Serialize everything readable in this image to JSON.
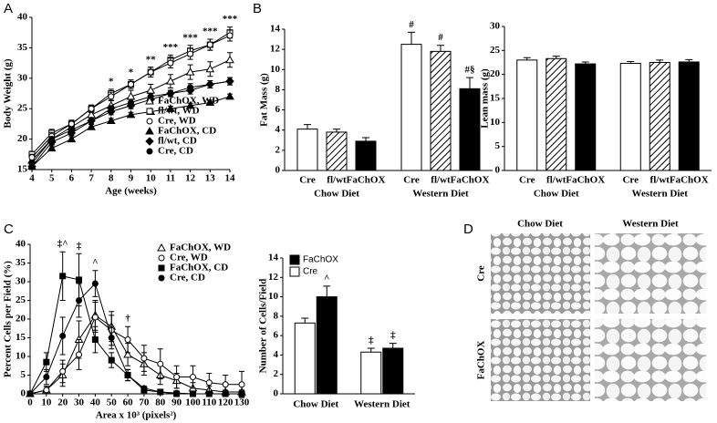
{
  "chart_data": [
    {
      "type": "line",
      "ylabel": "Body Weight (g)",
      "xlabel": "Age (weeks)",
      "xlim": [
        4,
        14
      ],
      "xticks": [
        4,
        5,
        6,
        7,
        8,
        9,
        10,
        11,
        12,
        13,
        14
      ],
      "ylim": [
        15,
        40
      ],
      "yticks": [
        15,
        20,
        25,
        30,
        35,
        40
      ],
      "legend": "lower right",
      "x": [
        4,
        5,
        6,
        7,
        8,
        9,
        10,
        11,
        12,
        13,
        14
      ],
      "series": [
        {
          "name": "FaChOX, WD",
          "color": "#000000",
          "marker": "triangle",
          "filled": false,
          "values": [
            16.5,
            20,
            22,
            24,
            25.5,
            27,
            28,
            29.5,
            31,
            31.5,
            33
          ],
          "errors": [
            0.6,
            0.7,
            0.7,
            0.8,
            0.9,
            1,
            1,
            1.1,
            1.2,
            1.2,
            1.2
          ]
        },
        {
          "name": "fl/wt, WD",
          "color": "#000000",
          "marker": "square",
          "filled": false,
          "values": [
            17.5,
            21,
            22.5,
            25,
            27.5,
            29,
            31,
            33,
            34.5,
            35.5,
            37.5
          ],
          "errors": [
            0.5,
            0.6,
            0.6,
            0.6,
            0.7,
            0.7,
            0.8,
            0.8,
            0.9,
            0.9,
            0.9
          ]
        },
        {
          "name": "Cre, WD",
          "color": "#000000",
          "marker": "circle",
          "filled": false,
          "values": [
            17,
            20.5,
            22.5,
            25,
            27,
            29,
            31,
            32.5,
            34,
            35.5,
            37
          ],
          "errors": [
            0.5,
            0.6,
            0.6,
            0.6,
            0.7,
            0.7,
            0.8,
            0.8,
            0.9,
            0.9,
            0.9
          ]
        },
        {
          "name": "FaChOX, CD",
          "color": "#000000",
          "marker": "triangle",
          "filled": true,
          "values": [
            15.5,
            18.5,
            20,
            22,
            23,
            24,
            24.5,
            25,
            25.5,
            26,
            27
          ],
          "errors": [
            0.4,
            0.4,
            0.4,
            0.4,
            0.4,
            0.4,
            0.4,
            0.4,
            0.4,
            0.4,
            0.4
          ]
        },
        {
          "name": "fl/wt, CD",
          "color": "#000000",
          "marker": "diamond",
          "filled": true,
          "values": [
            15.5,
            19.5,
            21,
            23,
            24.5,
            25.5,
            26.5,
            27.5,
            28,
            29,
            29.5
          ],
          "errors": [
            0.4,
            0.4,
            0.4,
            0.5,
            0.5,
            0.5,
            0.5,
            0.5,
            0.6,
            0.6,
            0.6
          ]
        },
        {
          "name": "Cre, CD",
          "color": "#000000",
          "marker": "circle",
          "filled": true,
          "values": [
            16,
            20,
            21.5,
            23,
            25,
            26,
            27,
            27.5,
            28.5,
            29,
            29.5
          ],
          "errors": [
            0.4,
            0.4,
            0.4,
            0.5,
            0.5,
            0.5,
            0.5,
            0.5,
            0.6,
            0.6,
            0.6
          ]
        }
      ],
      "annotations": [
        {
          "x": 8,
          "text": "*"
        },
        {
          "x": 9,
          "text": "*"
        },
        {
          "x": 10,
          "text": "**"
        },
        {
          "x": 11,
          "text": "***"
        },
        {
          "x": 12,
          "text": "***"
        },
        {
          "x": 13,
          "text": "***"
        },
        {
          "x": 14,
          "text": "***"
        }
      ]
    },
    {
      "type": "bar",
      "ylabel": "Fat Mass (g)",
      "ylim": [
        0,
        14
      ],
      "yticks": [
        0,
        2,
        4,
        6,
        8,
        10,
        12,
        14
      ],
      "categories": [
        "Chow Diet",
        "Western Diet"
      ],
      "series_labels_below": true,
      "series": [
        {
          "name": "Cre",
          "color": "#ffffff",
          "values": [
            4.1,
            12.5
          ],
          "errors": [
            0.45,
            1.2
          ],
          "sig": [
            null,
            "#"
          ]
        },
        {
          "name": "fl/wt",
          "color": "#ffffff",
          "pattern": "hatch",
          "values": [
            3.8,
            11.8
          ],
          "errors": [
            0.3,
            0.6
          ],
          "sig": [
            null,
            "#"
          ]
        },
        {
          "name": "FaChOX",
          "color": "#000000",
          "values": [
            2.9,
            8.1
          ],
          "errors": [
            0.35,
            1.1
          ],
          "sig": [
            null,
            "#§"
          ]
        }
      ]
    },
    {
      "type": "bar",
      "ylabel": "Lean mass (g)",
      "ylim": [
        0,
        30
      ],
      "yticks": [
        0,
        5,
        10,
        15,
        20,
        25,
        30
      ],
      "categories": [
        "Chow Diet",
        "Western Diet"
      ],
      "series_labels_below": true,
      "series": [
        {
          "name": "Cre",
          "color": "#ffffff",
          "values": [
            23,
            22.3
          ],
          "errors": [
            0.5,
            0.4
          ]
        },
        {
          "name": "fl/wt",
          "color": "#ffffff",
          "pattern": "hatch",
          "values": [
            23.3,
            22.5
          ],
          "errors": [
            0.5,
            0.5
          ]
        },
        {
          "name": "FaChOX",
          "color": "#000000",
          "values": [
            22.2,
            22.6
          ],
          "errors": [
            0.4,
            0.5
          ]
        }
      ]
    },
    {
      "type": "line",
      "ylabel": "Percent Cells per Field (%)",
      "xlabel": "Area x 10³ (pixels²)",
      "xlim": [
        0,
        130
      ],
      "xticks": [
        0,
        10,
        20,
        30,
        40,
        50,
        60,
        70,
        80,
        90,
        100,
        110,
        120,
        130
      ],
      "ylim": [
        0,
        40
      ],
      "yticks": [
        0,
        5,
        10,
        15,
        20,
        25,
        30,
        35,
        40
      ],
      "legend": "upper right",
      "x": [
        0,
        10,
        20,
        30,
        40,
        50,
        60,
        70,
        80,
        90,
        100,
        110,
        120,
        130
      ],
      "series": [
        {
          "name": "FaChOX, WD",
          "color": "#000000",
          "marker": "triangle",
          "filled": false,
          "values": [
            0,
            1,
            5,
            14.5,
            21,
            18,
            10.5,
            8,
            5,
            3.5,
            1.5,
            1,
            0.5,
            0.5
          ],
          "errors": [
            0,
            1,
            3,
            5,
            4,
            4,
            3,
            3,
            2.5,
            2,
            1.5,
            1,
            0.5,
            0.5
          ]
        },
        {
          "name": "Cre, WD",
          "color": "#000000",
          "marker": "circle",
          "filled": false,
          "values": [
            0,
            1,
            6,
            10.5,
            20.5,
            17,
            14.5,
            9.5,
            8,
            4.5,
            4.5,
            3,
            2.5,
            2.5
          ],
          "errors": [
            0,
            1,
            3,
            4,
            4,
            4,
            3.5,
            3.5,
            4,
            3,
            3,
            2.5,
            2.5,
            3.5
          ]
        },
        {
          "name": "FaChOX, CD",
          "color": "#000000",
          "marker": "square",
          "filled": true,
          "values": [
            0,
            8.5,
            31.5,
            30.5,
            14.5,
            9,
            5,
            1,
            0.5,
            0,
            0,
            0,
            0,
            0
          ],
          "errors": [
            0,
            2.5,
            6.5,
            7,
            3.5,
            2,
            1.5,
            0.5,
            0.5,
            0,
            0,
            0,
            0,
            0
          ]
        },
        {
          "name": "Cre, CD",
          "color": "#000000",
          "marker": "circle",
          "filled": true,
          "values": [
            0,
            4.5,
            15.5,
            25,
            29.5,
            15,
            5,
            1.5,
            0.5,
            0.2,
            0,
            0,
            0,
            0
          ],
          "errors": [
            0,
            2,
            5,
            4.5,
            3.5,
            3,
            1.5,
            0.5,
            0.5,
            0.2,
            0,
            0,
            0,
            0
          ]
        }
      ],
      "annotations": [
        {
          "x": 20,
          "text": "‡^"
        },
        {
          "x": 30,
          "text": "‡"
        },
        {
          "x": 40,
          "text": "^"
        },
        {
          "x": 60,
          "text": "†"
        }
      ]
    },
    {
      "type": "bar",
      "ylabel": "Number of Cells/Field",
      "ylim": [
        0,
        14
      ],
      "yticks": [
        0,
        2,
        4,
        6,
        8,
        10,
        12,
        14
      ],
      "categories": [
        "Chow Diet",
        "Western Diet"
      ],
      "legend": "upper left",
      "series": [
        {
          "name": "Cre",
          "color": "#ffffff",
          "values": [
            7.3,
            4.3
          ],
          "errors": [
            0.5,
            0.4
          ],
          "sig": [
            null,
            "‡"
          ]
        },
        {
          "name": "FaChOX",
          "color": "#000000",
          "values": [
            10,
            4.7
          ],
          "errors": [
            1.1,
            0.5
          ],
          "sig": [
            "^",
            "‡"
          ]
        }
      ]
    }
  ],
  "panel_labels": [
    "A",
    "B",
    "C",
    "D"
  ],
  "micrographs": {
    "columns": [
      "Chow Diet",
      "Western Diet"
    ],
    "rows": [
      "Cre",
      "FaChOX"
    ]
  }
}
